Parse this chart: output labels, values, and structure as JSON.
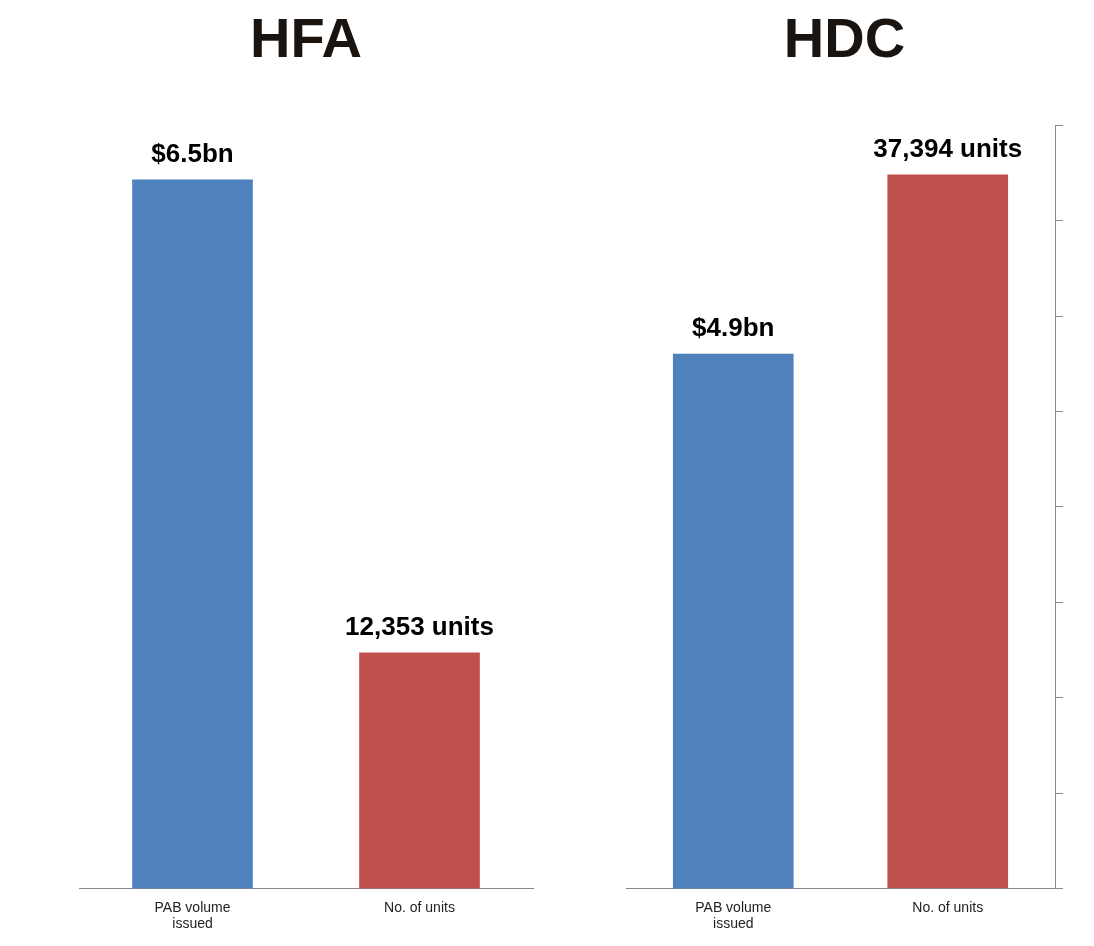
{
  "chart_data": [
    {
      "type": "bar",
      "title": "HFA",
      "categories": [
        "PAB volume issued",
        "No. of units"
      ],
      "series": [
        {
          "color": "#4f81bd",
          "values": [
            6.5,
            null
          ],
          "value_labels": [
            "$6.5bn",
            null
          ]
        },
        {
          "color": "#c0504d",
          "values": [
            null,
            12353
          ],
          "value_labels": [
            null,
            "12,353 units"
          ],
          "axis": "y2"
        }
      ],
      "tick_labels": "x",
      "grid": false,
      "legend": false
    },
    {
      "type": "bar",
      "title": "HDC",
      "categories": [
        "PAB volume issued",
        "No. of units"
      ],
      "series": [
        {
          "color": "#4f81bd",
          "values": [
            4.9,
            null
          ],
          "value_labels": [
            "$4.9bn",
            null
          ]
        },
        {
          "color": "#c0504d",
          "values": [
            null,
            37394
          ],
          "value_labels": [
            null,
            "37,394 units"
          ],
          "axis": "y2"
        }
      ],
      "ylim": [
        0,
        7
      ],
      "y2lim": [
        0,
        40000
      ],
      "y2ticks": [
        {
          "value": 0,
          "label": null
        },
        {
          "value": 5000,
          "label": null
        },
        {
          "value": 10000,
          "label": null
        },
        {
          "value": 15000,
          "label": null
        },
        {
          "value": 20000,
          "label": null
        },
        {
          "value": 25000,
          "label": null
        },
        {
          "value": 30000,
          "label": null
        },
        {
          "value": 35000,
          "label": null
        },
        {
          "value": 40000,
          "label": null
        }
      ],
      "tick_labels": "x",
      "grid": false,
      "legend": false
    }
  ]
}
